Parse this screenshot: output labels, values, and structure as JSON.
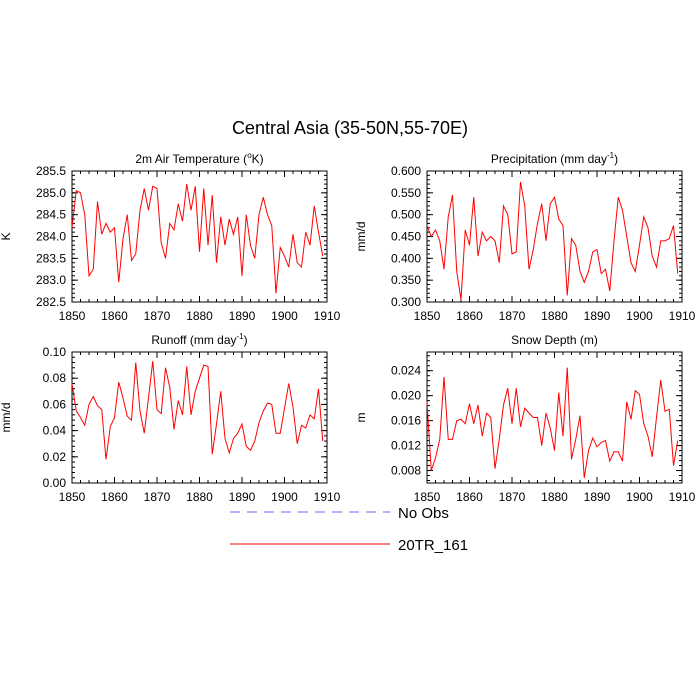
{
  "chart_data": {
    "title": "Central Asia (35-50N,55-70E)",
    "legend": {
      "placement": "bottom-center",
      "entries": [
        {
          "name": "No Obs",
          "color": "#6a6aff",
          "dashed": true
        },
        {
          "name": "20TR_161",
          "color": "#ff0000",
          "dashed": false
        }
      ]
    },
    "x": [
      1850,
      1851,
      1852,
      1853,
      1854,
      1855,
      1856,
      1857,
      1858,
      1859,
      1860,
      1861,
      1862,
      1863,
      1864,
      1865,
      1866,
      1867,
      1868,
      1869,
      1870,
      1871,
      1872,
      1873,
      1874,
      1875,
      1876,
      1877,
      1878,
      1879,
      1880,
      1881,
      1882,
      1883,
      1884,
      1885,
      1886,
      1887,
      1888,
      1889,
      1890,
      1891,
      1892,
      1893,
      1894,
      1895,
      1896,
      1897,
      1898,
      1899,
      1900,
      1901,
      1902,
      1903,
      1904,
      1905,
      1906,
      1907,
      1908,
      1909
    ],
    "panels": [
      {
        "type": "line",
        "title": "2m Air Temperature (",
        "title_sup": "o",
        "title_post": "K)",
        "ylabel": "K",
        "xlim": [
          1850,
          1910
        ],
        "ylim": [
          282.5,
          285.5
        ],
        "yticks": [
          282.5,
          283.0,
          283.5,
          284.0,
          284.5,
          285.0,
          285.5
        ],
        "ytick_labels": [
          "282.5",
          "283.0",
          "283.5",
          "284.0",
          "284.5",
          "285.0",
          "285.5"
        ],
        "xticks": [
          1850,
          1860,
          1870,
          1880,
          1890,
          1900,
          1910
        ],
        "xtick_labels": [
          "1850",
          "1860",
          "1870",
          "1880",
          "1890",
          "1900",
          "1910"
        ],
        "series": [
          {
            "name": "20TR_161",
            "values": [
              284.2,
              285.05,
              285.0,
              284.5,
              283.1,
              283.25,
              284.8,
              284.05,
              284.3,
              284.1,
              284.2,
              282.95,
              283.95,
              284.5,
              283.45,
              283.6,
              284.6,
              285.1,
              284.6,
              285.15,
              285.1,
              283.85,
              283.5,
              284.3,
              284.15,
              284.75,
              284.35,
              285.2,
              284.6,
              285.15,
              283.65,
              285.1,
              283.8,
              284.95,
              283.4,
              284.45,
              283.8,
              284.4,
              284.05,
              284.45,
              283.1,
              284.5,
              283.8,
              283.5,
              284.5,
              284.9,
              284.5,
              284.25,
              282.7,
              283.75,
              283.55,
              283.3,
              284.05,
              283.4,
              283.3,
              284.1,
              283.8,
              284.7,
              284.1,
              283.55
            ]
          }
        ]
      },
      {
        "type": "line",
        "title": "Precipitation (mm day",
        "title_sup": "-1",
        "title_post": ")",
        "ylabel": "mm/d",
        "xlim": [
          1850,
          1910
        ],
        "ylim": [
          0.3,
          0.6
        ],
        "yticks": [
          0.3,
          0.35,
          0.4,
          0.45,
          0.5,
          0.55,
          0.6
        ],
        "ytick_labels": [
          "0.300",
          "0.350",
          "0.400",
          "0.450",
          "0.500",
          "0.550",
          "0.600"
        ],
        "xticks": [
          1850,
          1860,
          1870,
          1880,
          1890,
          1900,
          1910
        ],
        "xtick_labels": [
          "1850",
          "1860",
          "1870",
          "1880",
          "1890",
          "1900",
          "1910"
        ],
        "series": [
          {
            "name": "20TR_161",
            "values": [
              0.475,
              0.45,
              0.465,
              0.44,
              0.375,
              0.495,
              0.545,
              0.37,
              0.305,
              0.465,
              0.43,
              0.54,
              0.405,
              0.46,
              0.44,
              0.45,
              0.44,
              0.39,
              0.52,
              0.5,
              0.41,
              0.415,
              0.575,
              0.52,
              0.375,
              0.42,
              0.48,
              0.525,
              0.44,
              0.525,
              0.54,
              0.49,
              0.475,
              0.315,
              0.445,
              0.43,
              0.37,
              0.345,
              0.37,
              0.415,
              0.42,
              0.365,
              0.375,
              0.325,
              0.44,
              0.54,
              0.51,
              0.45,
              0.39,
              0.37,
              0.43,
              0.495,
              0.47,
              0.405,
              0.38,
              0.44,
              0.44,
              0.445,
              0.475,
              0.365
            ]
          }
        ]
      },
      {
        "type": "line",
        "title": "Runoff (mm day",
        "title_sup": "-1",
        "title_post": ")",
        "ylabel": "mm/d",
        "xlim": [
          1850,
          1910
        ],
        "ylim": [
          0.0,
          0.1
        ],
        "yticks": [
          0.0,
          0.02,
          0.04,
          0.06,
          0.08,
          0.1
        ],
        "ytick_labels": [
          "0.00",
          "0.02",
          "0.04",
          "0.06",
          "0.08",
          "0.10"
        ],
        "xticks": [
          1850,
          1860,
          1870,
          1880,
          1890,
          1900,
          1910
        ],
        "xtick_labels": [
          "1850",
          "1860",
          "1870",
          "1880",
          "1890",
          "1900",
          "1910"
        ],
        "series": [
          {
            "name": "20TR_161",
            "values": [
              0.076,
              0.055,
              0.05,
              0.044,
              0.06,
              0.066,
              0.059,
              0.056,
              0.018,
              0.043,
              0.05,
              0.077,
              0.065,
              0.051,
              0.048,
              0.092,
              0.055,
              0.038,
              0.065,
              0.093,
              0.056,
              0.053,
              0.088,
              0.073,
              0.041,
              0.063,
              0.052,
              0.089,
              0.052,
              0.07,
              0.08,
              0.09,
              0.089,
              0.022,
              0.045,
              0.07,
              0.034,
              0.023,
              0.034,
              0.038,
              0.045,
              0.028,
              0.025,
              0.032,
              0.046,
              0.055,
              0.061,
              0.06,
              0.038,
              0.038,
              0.057,
              0.076,
              0.058,
              0.03,
              0.044,
              0.042,
              0.052,
              0.049,
              0.072,
              0.032
            ]
          }
        ]
      },
      {
        "type": "line",
        "title": "Snow Depth (m)",
        "title_sup": "",
        "title_post": "",
        "ylabel": "m",
        "xlim": [
          1850,
          1910
        ],
        "ylim": [
          0.006,
          0.027
        ],
        "yticks": [
          0.008,
          0.012,
          0.016,
          0.02,
          0.024
        ],
        "ytick_labels": [
          "0.008",
          "0.012",
          "0.016",
          "0.020",
          "0.024"
        ],
        "xticks": [
          1850,
          1860,
          1870,
          1880,
          1890,
          1900,
          1910
        ],
        "xtick_labels": [
          "1850",
          "1860",
          "1870",
          "1880",
          "1890",
          "1900",
          "1910"
        ],
        "series": [
          {
            "name": "20TR_161",
            "values": [
              0.019,
              0.008,
              0.01,
              0.013,
              0.023,
              0.013,
              0.013,
              0.016,
              0.0162,
              0.0155,
              0.0187,
              0.0155,
              0.0185,
              0.0135,
              0.0172,
              0.0165,
              0.0083,
              0.013,
              0.0185,
              0.0212,
              0.0155,
              0.0212,
              0.015,
              0.018,
              0.0172,
              0.0165,
              0.0165,
              0.012,
              0.0172,
              0.0148,
              0.0112,
              0.0205,
              0.0135,
              0.0245,
              0.0098,
              0.013,
              0.0168,
              0.0068,
              0.0112,
              0.0132,
              0.0118,
              0.0125,
              0.0128,
              0.0095,
              0.011,
              0.011,
              0.0095,
              0.019,
              0.0162,
              0.0208,
              0.0202,
              0.0155,
              0.0135,
              0.0102,
              0.0165,
              0.0225,
              0.0175,
              0.0178,
              0.0088,
              0.0128
            ]
          }
        ]
      }
    ]
  }
}
